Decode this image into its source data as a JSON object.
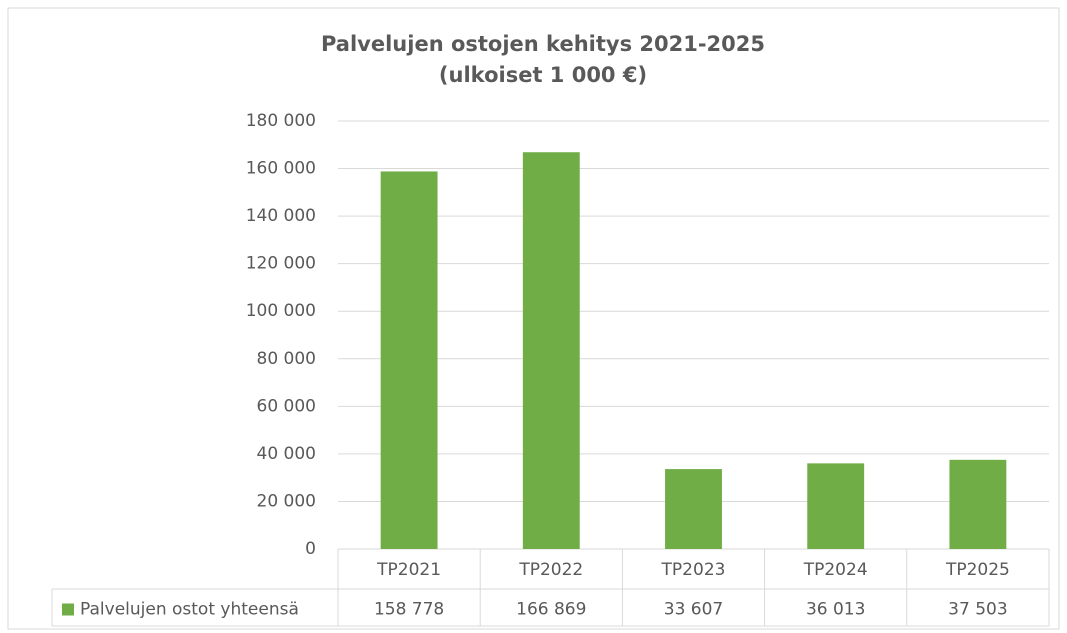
{
  "chart_data": {
    "type": "bar",
    "title": "Palvelujen ostojen kehitys 2021-2025",
    "subtitle": "(ulkoiset 1 000 €)",
    "categories": [
      "TP2021",
      "TP2022",
      "TP2023",
      "TP2024",
      "TP2025"
    ],
    "series": [
      {
        "name": "Palvelujen ostot yhteensä",
        "color": "#70ad47",
        "values": [
          158778,
          166869,
          33607,
          36013,
          37503
        ],
        "value_labels": [
          "158 778",
          "166 869",
          "33 607",
          "36 013",
          "37 503"
        ]
      }
    ],
    "ylim": [
      0,
      180000
    ],
    "yticks": [
      0,
      {
        "value": 20000,
        "label": "20 000"
      },
      {
        "value": 40000,
        "label": "40 000"
      },
      {
        "value": 60000,
        "label": "60 000"
      },
      {
        "value": 80000,
        "label": "80 000"
      },
      {
        "value": 100000,
        "label": "100 000"
      },
      {
        "value": 120000,
        "label": "120 000"
      },
      {
        "value": 140000,
        "label": "140 000"
      },
      {
        "value": 160000,
        "label": "160 000"
      },
      {
        "value": 180000,
        "label": "180 000"
      }
    ],
    "grid": true
  }
}
